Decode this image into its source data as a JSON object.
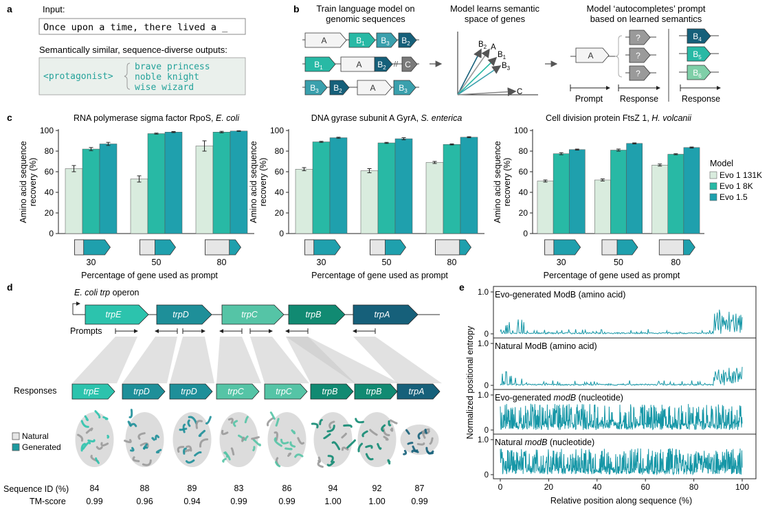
{
  "colors": {
    "evo1_131k": "#d9ecde",
    "evo1_8k": "#28b9a5",
    "evo15": "#1fa0ad",
    "navy": "#16607a",
    "dark_teal": "#118a72",
    "mid_teal": "#1e8f99",
    "light_teal": "#55c4a6",
    "pale_teal": "#b7e6da",
    "entropy_line": "#1596a6",
    "term_bg": "#eaf0ec",
    "term_text": "#24a29a"
  },
  "panel_letters": {
    "a": "a",
    "b": "b",
    "c": "c",
    "d": "d",
    "e": "e"
  },
  "panel_a": {
    "input_label": "Input:",
    "input_text": "Once upon a time, there lived a _",
    "outputs_label": "Semantically similar, sequence-diverse outputs:",
    "tag": "<protagonist>",
    "options": [
      "brave princess",
      "noble knight",
      "wise wizard"
    ]
  },
  "panel_b": {
    "step1_line1": "Train language model on",
    "step1_line2": "genomic sequences",
    "step2_line1": "Model learns semantic",
    "step2_line2": "space of genes",
    "step3_line1": "Model ‘autocompletes’ prompt",
    "step3_line2": "based on learned semantics",
    "gene_A": "A",
    "gene_C": "C",
    "gene_B": "B",
    "sub1": "1",
    "sub2": "2",
    "sub3": "3",
    "sub4": "4",
    "sub5": "5",
    "sub6": "6",
    "vector_labels": [
      "B2",
      "A",
      "B1",
      "B3",
      "C"
    ],
    "q": "?",
    "gap": "//",
    "prompt_label": "Prompt",
    "response_label": "Response"
  },
  "chart_data": [
    {
      "type": "bar",
      "title_prefix": "RNA polymerase sigma factor RpoS, ",
      "title_species": "E. coli",
      "categories": [
        "30",
        "50",
        "80"
      ],
      "series": [
        {
          "name": "Evo 1 131K",
          "values": [
            63,
            53,
            85
          ],
          "errors": [
            3,
            3,
            5
          ]
        },
        {
          "name": "Evo 1 8K",
          "values": [
            82,
            97,
            98.5
          ],
          "errors": [
            1.5,
            0.5,
            0.7
          ]
        },
        {
          "name": "Evo 1.5",
          "values": [
            87,
            98.5,
            99.5
          ],
          "errors": [
            1.5,
            0.5,
            0.3
          ]
        }
      ],
      "ylabel_line1": "Amino acid sequence",
      "ylabel_line2": "recovery (%)",
      "xlabel": "Percentage of gene used as prompt",
      "ylim": [
        0,
        100
      ],
      "yticks": [
        "0",
        "20",
        "40",
        "60",
        "80",
        "100"
      ]
    },
    {
      "type": "bar",
      "title_prefix": "DNA gyrase subunit A GyrA, ",
      "title_species": "S. enterica",
      "categories": [
        "30",
        "50",
        "80"
      ],
      "series": [
        {
          "name": "Evo 1 131K",
          "values": [
            62.5,
            61,
            69
          ],
          "errors": [
            1.5,
            2,
            1
          ]
        },
        {
          "name": "Evo 1 8K",
          "values": [
            89,
            88,
            86.5
          ],
          "errors": [
            0.5,
            0.5,
            0.5
          ]
        },
        {
          "name": "Evo 1.5",
          "values": [
            93,
            92,
            93.5
          ],
          "errors": [
            0.5,
            1,
            0.5
          ]
        }
      ],
      "ylabel_line1": "Amino acid sequence",
      "ylabel_line2": "recovery (%)",
      "xlabel": "Percentage of gene used as prompt",
      "ylim": [
        0,
        100
      ],
      "yticks": [
        "0",
        "20",
        "40",
        "60",
        "80",
        "100"
      ]
    },
    {
      "type": "bar",
      "title_prefix": "Cell division protein FtsZ 1, ",
      "title_species": "H. volcanii",
      "categories": [
        "30",
        "50",
        "80"
      ],
      "series": [
        {
          "name": "Evo 1 131K",
          "values": [
            51,
            52,
            66.5
          ],
          "errors": [
            1,
            1,
            1
          ]
        },
        {
          "name": "Evo 1 8K",
          "values": [
            77.5,
            81,
            77
          ],
          "errors": [
            1,
            1,
            0.5
          ]
        },
        {
          "name": "Evo 1.5",
          "values": [
            81.5,
            87.5,
            83.5
          ],
          "errors": [
            0.5,
            0.5,
            0.5
          ]
        }
      ],
      "ylabel_line1": "Amino acid sequence",
      "ylabel_line2": "recovery (%)",
      "xlabel": "Percentage of gene used as prompt",
      "ylim": [
        0,
        100
      ],
      "yticks": [
        "0",
        "20",
        "40",
        "60",
        "80",
        "100"
      ]
    },
    {
      "type": "line",
      "panel": "e",
      "ylabel": "Normalized positional entropy",
      "xlabel": "Relative position along sequence (%)",
      "xlim": [
        0,
        100
      ],
      "ylim": [
        0,
        1
      ],
      "xticks": [
        "0",
        "20",
        "40",
        "60",
        "80",
        "100"
      ],
      "yticks": [
        "0",
        "1.0"
      ],
      "tracks": [
        {
          "name": "Evo-generated ModB (amino acid)",
          "label_plain": "Evo-generated ModB (amino acid)",
          "label_italic": "",
          "label_suffix": "",
          "kind": "amino",
          "seed": 11,
          "peak": 0.6
        },
        {
          "name": "Natural ModB (amino acid)",
          "label_plain": "Natural ModB (amino acid)",
          "label_italic": "",
          "label_suffix": "",
          "kind": "amino",
          "seed": 23,
          "peak": 0.45
        },
        {
          "name": "Evo-generated modB (nucleotide)",
          "label_plain": "Evo-generated ",
          "label_italic": "modB",
          "label_suffix": " (nucleotide)",
          "kind": "nucleotide",
          "seed": 37,
          "peak": 0.8
        },
        {
          "name": "Natural modB (nucleotide)",
          "label_plain": "Natural ",
          "label_italic": "modB",
          "label_suffix": " (nucleotide)",
          "kind": "nucleotide",
          "seed": 53,
          "peak": 0.75
        }
      ]
    }
  ],
  "legend": {
    "title": "Model",
    "items": [
      {
        "label": "Evo 1 131K",
        "color": "#d9ecde"
      },
      {
        "label": "Evo 1 8K",
        "color": "#28b9a5"
      },
      {
        "label": "Evo 1.5",
        "color": "#1fa0ad"
      }
    ]
  },
  "panel_d": {
    "operon_title_italic": "E. coli trp",
    "operon_title_rest": " operon",
    "genes": [
      {
        "name": "trpE",
        "color": "#2cc3ad"
      },
      {
        "name": "trpD",
        "color": "#1e8f99"
      },
      {
        "name": "trpC",
        "color": "#55c4a6"
      },
      {
        "name": "trpB",
        "color": "#118a72"
      },
      {
        "name": "trpA",
        "color": "#16607a"
      }
    ],
    "prompts_label": "Prompts",
    "responses_label": "Responses",
    "responses": [
      {
        "name": "trpE",
        "color": "#2cc3ad"
      },
      {
        "name": "trpD",
        "color": "#1e8f99"
      },
      {
        "name": "trpD",
        "color": "#1e8f99"
      },
      {
        "name": "trpC",
        "color": "#55c4a6"
      },
      {
        "name": "trpC",
        "color": "#55c4a6"
      },
      {
        "name": "trpB",
        "color": "#118a72"
      },
      {
        "name": "trpB",
        "color": "#118a72"
      },
      {
        "name": "trpA",
        "color": "#16607a"
      }
    ],
    "legend_natural": "Natural",
    "legend_generated": "Generated",
    "seqid_label": "Sequence ID (%)",
    "tm_label": "TM-score",
    "seqid": [
      "84",
      "88",
      "89",
      "83",
      "86",
      "94",
      "92",
      "87"
    ],
    "tm": [
      "0.99",
      "0.96",
      "0.94",
      "0.99",
      "0.99",
      "1.00",
      "1.00",
      "0.99"
    ]
  }
}
